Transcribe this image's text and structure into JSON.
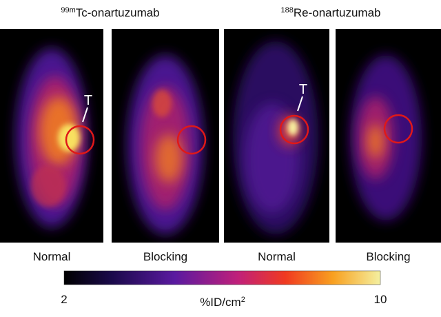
{
  "headers": [
    {
      "isotope": "99m",
      "name": "Tc-onartuzumab"
    },
    {
      "isotope": "188",
      "name": "Re-onartuzumab"
    }
  ],
  "panels": [
    {
      "label": "Normal",
      "tumor_label": "T"
    },
    {
      "label": "Blocking"
    },
    {
      "label": "Normal",
      "tumor_label": "T"
    },
    {
      "label": "Blocking"
    }
  ],
  "colorbar": {
    "min": 2,
    "max": 10,
    "label": "%ID/cm",
    "label_superscript": "2"
  }
}
